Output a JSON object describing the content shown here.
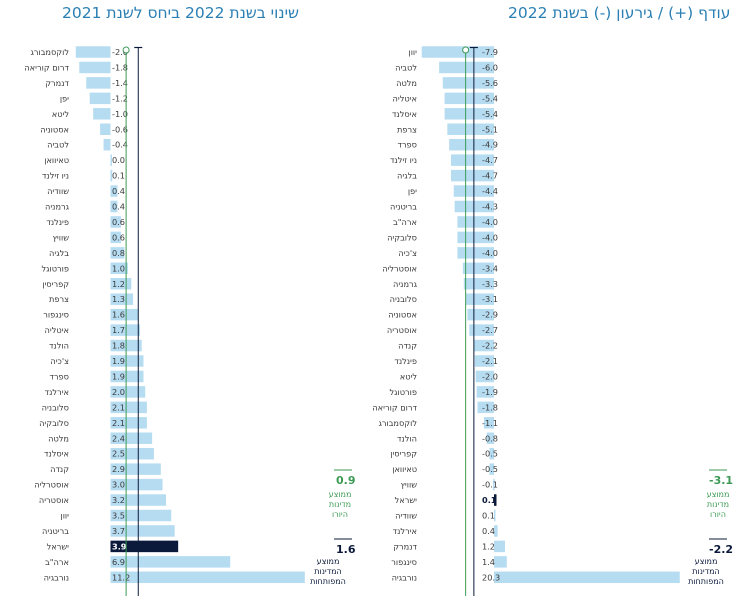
{
  "chart_data": [
    {
      "type": "bar",
      "title": "עודף (+) / גירעון (-) בשנת 2022",
      "categories": [
        "יוון",
        "לטביה",
        "מלטה",
        "איטליה",
        "איסלנד",
        "צרפת",
        "ספרד",
        "ניו זילנד",
        "בלגיה",
        "יפן",
        "בריטניה",
        "ארה\"ב",
        "סלובקיה",
        "צ'כיה",
        "אוסטרליה",
        "גרמניה",
        "סלובניה",
        "אסטוניה",
        "אוסטריה",
        "קנדה",
        "פינלנד",
        "ליטא",
        "פורטוגל",
        "דרום קוריאה",
        "לוקסמבורג",
        "הולנד",
        "קפריסין",
        "טאיוואן",
        "שוויץ",
        "ישראל",
        "שוודיה",
        "אירלנד",
        "דנמרק",
        "סינגפור",
        "נורבגיה"
      ],
      "values": [
        -7.9,
        -6.0,
        -5.6,
        -5.4,
        -5.4,
        -5.1,
        -4.9,
        -4.7,
        -4.7,
        -4.4,
        -4.3,
        -4.0,
        -4.0,
        -4.0,
        -3.4,
        -3.3,
        -3.1,
        -2.9,
        -2.7,
        -2.2,
        -2.1,
        -2.0,
        -1.9,
        -1.8,
        -1.1,
        -0.8,
        -0.5,
        -0.5,
        -0.1,
        0.1,
        0.1,
        0.4,
        1.2,
        1.4,
        20.3
      ],
      "value_labels": [
        "-7.9",
        "-6.0",
        "-5.6",
        "-5.4",
        "-5.4",
        "-5.1",
        "-4.9",
        "-4.7",
        "-4.7",
        "-4.4",
        "-4.3",
        "-4.0",
        "-4.0",
        "-4.0",
        "-3.4",
        "-3.3",
        "-3.1",
        "-2.9",
        "-2.7",
        "-2.2",
        "-2.1",
        "-2.0",
        "-1.9",
        "-1.8",
        "-1.1",
        "-0.8",
        "-0.5",
        "-0.5",
        "-0.1",
        "0.1",
        "0.1",
        "0.4",
        "1.2",
        "1.4",
        "20.3"
      ],
      "highlight": "ישראל",
      "reference_lines": [
        {
          "value": -3.1,
          "value_label": "-3.1",
          "label": "ממוצע מדינות היורו",
          "color": "#3c9a55"
        },
        {
          "value": -2.2,
          "value_label": "-2.2",
          "label": "ממוצע המדינות המפותחות",
          "color": "#0b1a3a"
        }
      ]
    },
    {
      "type": "bar",
      "title": "שינוי בשנת 2022 ביחס לשנת 2021",
      "categories": [
        "לוקסמבורג",
        "דרום קוריאה",
        "דנמרק",
        "יפן",
        "ליטא",
        "אסטוניה",
        "לטביה",
        "טאיוואן",
        "ניו זילנד",
        "שוודיה",
        "גרמניה",
        "פינלנד",
        "שוויץ",
        "בלגיה",
        "פורטוגל",
        "קפריסין",
        "צרפת",
        "סינגפור",
        "איטליה",
        "הולנד",
        "צ'כיה",
        "ספרד",
        "אירלנד",
        "סלובניה",
        "סלובקיה",
        "מלטה",
        "איסלנד",
        "קנדה",
        "אוסטרליה",
        "אוסטריה",
        "יוון",
        "בריטניה",
        "ישראל",
        "ארה\"ב",
        "נורבגיה"
      ],
      "values": [
        -2.0,
        -1.8,
        -1.4,
        -1.2,
        -1.0,
        -0.6,
        -0.4,
        0.0,
        0.1,
        0.4,
        0.4,
        0.6,
        0.6,
        0.8,
        1.0,
        1.2,
        1.3,
        1.6,
        1.7,
        1.8,
        1.9,
        1.9,
        2.0,
        2.1,
        2.1,
        2.4,
        2.5,
        2.9,
        3.0,
        3.2,
        3.5,
        3.7,
        3.9,
        6.9,
        11.2
      ],
      "value_labels": [
        "-2.0",
        "-1.8",
        "-1.4",
        "-1.2",
        "-1.0",
        "-0.6",
        "-0.4",
        "0.0",
        "0.1",
        "0.4",
        "0.4",
        "0.6",
        "0.6",
        "0.8",
        "1.0",
        "1.2",
        "1.3",
        "1.6",
        "1.7",
        "1.8",
        "1.9",
        "1.9",
        "2.0",
        "2.1",
        "2.1",
        "2.4",
        "2.5",
        "2.9",
        "3.0",
        "3.2",
        "3.5",
        "3.7",
        "3.9",
        "6.9",
        "11.2"
      ],
      "highlight": "ישראל",
      "reference_lines": [
        {
          "value": 0.9,
          "value_label": "0.9",
          "label": "ממוצע מדינות היורו",
          "color": "#3c9a55"
        },
        {
          "value": 1.6,
          "value_label": "1.6",
          "label": "ממוצע המדינות המפותחות",
          "color": "#0b1a3a"
        }
      ]
    }
  ],
  "colors": {
    "bar": "#b6dcf2",
    "highlight": "#0b1a3a",
    "euro_line": "#3c9a55",
    "dev_line": "#0b1a3a",
    "title": "#2a7fb3"
  }
}
